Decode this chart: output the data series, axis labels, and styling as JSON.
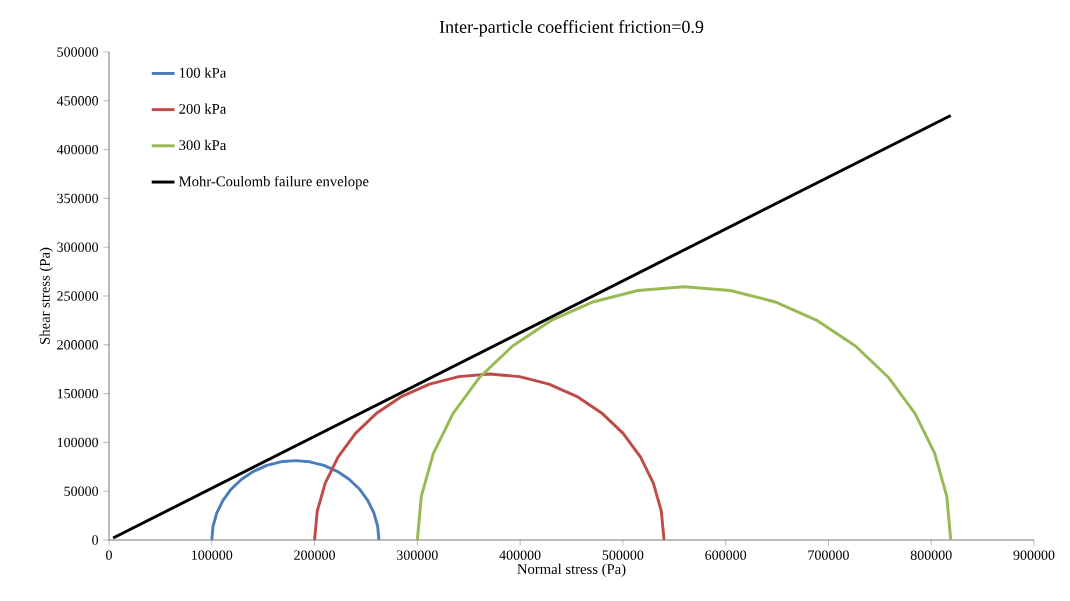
{
  "chart_data": {
    "type": "line",
    "title": "Inter-particle  coefficient  friction=0.9",
    "xlabel": "Normal stress (Pa)",
    "ylabel": "Shear stress (Pa)",
    "xlim": [
      0,
      900000
    ],
    "xticks": [
      0,
      100000,
      200000,
      300000,
      400000,
      500000,
      600000,
      700000,
      800000,
      900000
    ],
    "ylim": [
      0,
      500000
    ],
    "yticks": [
      0,
      50000,
      100000,
      150000,
      200000,
      250000,
      300000,
      350000,
      400000,
      450000,
      500000
    ],
    "grid": false,
    "legend": "top left",
    "marker": "none",
    "line_style": "solid",
    "series": [
      {
        "name": "100 kPa",
        "color": "#4a7ebb",
        "x": [
          100000,
          101200,
          104900,
          110900,
          119000,
          129000,
          140700,
          153500,
          167200,
          181300,
          195400,
          209100,
          222000,
          233600,
          243600,
          251700,
          257700,
          261400,
          262600
        ],
        "values": [
          0,
          14100,
          27800,
          40700,
          52300,
          62300,
          70400,
          76400,
          80100,
          81300,
          80100,
          76400,
          70400,
          62300,
          52300,
          40700,
          27800,
          14100,
          0
        ]
      },
      {
        "name": "200 kPa",
        "color": "#be4b48",
        "x": [
          200000,
          202600,
          210300,
          222800,
          239800,
          260700,
          285000,
          311900,
          340500,
          370000,
          399500,
          428100,
          455000,
          479300,
          500200,
          517200,
          529700,
          537400,
          540000
        ],
        "values": [
          0,
          29500,
          58100,
          85000,
          109300,
          130200,
          147200,
          159700,
          167400,
          170000,
          167400,
          159700,
          147200,
          130200,
          109300,
          85000,
          58100,
          29500,
          0
        ]
      },
      {
        "name": "300 kPa",
        "color": "#98b954",
        "x": [
          300000,
          303900,
          315600,
          334800,
          360700,
          392700,
          429800,
          470800,
          514500,
          559500,
          604500,
          648200,
          689300,
          726300,
          758200,
          784200,
          803400,
          815100,
          819000
        ],
        "values": [
          0,
          45000,
          88700,
          129800,
          166800,
          198800,
          224700,
          243900,
          255600,
          259500,
          255600,
          243900,
          224700,
          198800,
          166800,
          129800,
          88700,
          45000,
          0
        ]
      },
      {
        "name": "Mohr-Coulomb failure envelope",
        "color": "#000000",
        "x": [
          4000,
          819000
        ],
        "values": [
          2000,
          435000
        ]
      }
    ]
  }
}
